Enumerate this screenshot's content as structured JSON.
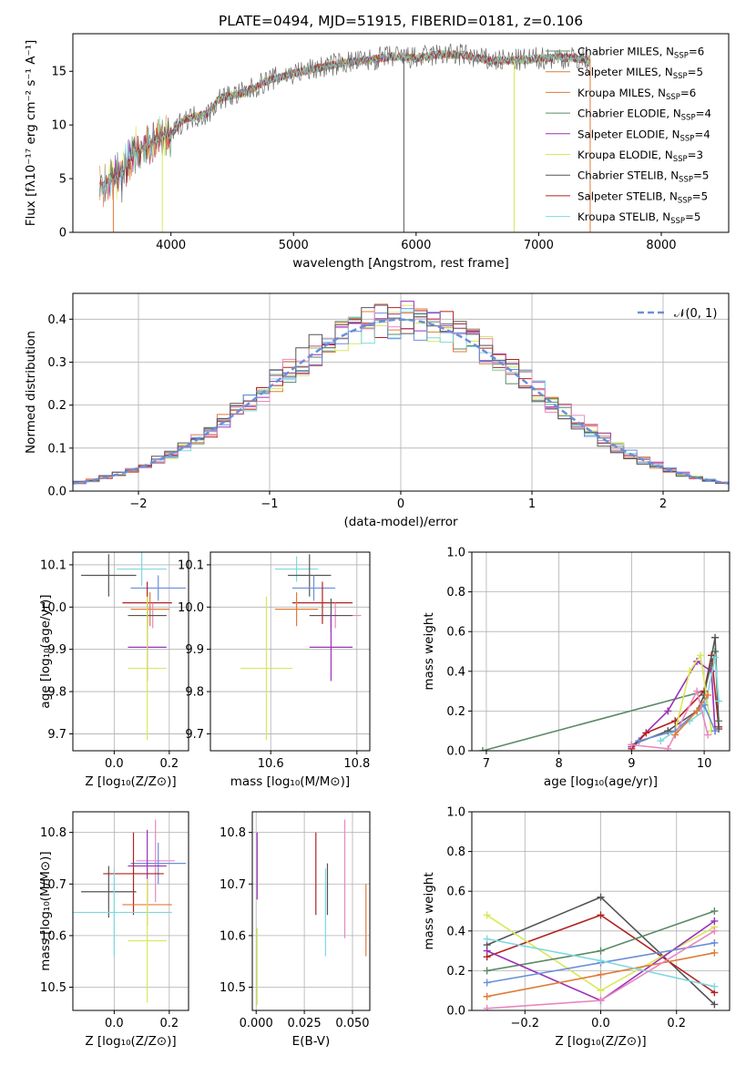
{
  "colors": {
    "chabrier_miles": "#5b8a66",
    "salpeter_miles": "#e07b39",
    "kroupa_miles": "#e07b39",
    "chabrier_elodie": "#5b8a66",
    "salpeter_elodie": "#9b30b8",
    "kroupa_elodie": "#d8e85a",
    "chabrier_stelib": "#555555",
    "salpeter_stelib": "#b22222",
    "kroupa_stelib": "#7fd8e0",
    "blue": "#6a8fd8",
    "pink": "#e888c0"
  },
  "chart_data": [
    {
      "type": "line",
      "title": "PLATE=0494, MJD=51915, FIBERID=0181, z=0.106",
      "xlabel": "wavelength [Angstrom, rest frame]",
      "ylabel": "Flux [fλ10⁻¹⁷ erg cm⁻² s⁻¹ A⁻¹]",
      "xlim": [
        3200,
        8550
      ],
      "ylim": [
        0,
        18.5
      ],
      "xticks": [
        "4000",
        "5000",
        "6000",
        "7000",
        "8000"
      ],
      "yticks": [
        "0",
        "5",
        "10",
        "15"
      ],
      "legend_position": "right",
      "legend": [
        {
          "label": "Chabrier MILES, N",
          "sub": "SSP",
          "tail": "=6",
          "color_key": "chabrier_miles"
        },
        {
          "label": "Salpeter MILES, N",
          "sub": "SSP",
          "tail": "=5",
          "color_key": "salpeter_miles"
        },
        {
          "label": "Kroupa MILES, N",
          "sub": "SSP",
          "tail": "=6",
          "color_key": "kroupa_miles"
        },
        {
          "label": "Chabrier ELODIE, N",
          "sub": "SSP",
          "tail": "=4",
          "color_key": "chabrier_elodie"
        },
        {
          "label": "Salpeter ELODIE, N",
          "sub": "SSP",
          "tail": "=4",
          "color_key": "salpeter_elodie"
        },
        {
          "label": "Kroupa ELODIE, N",
          "sub": "SSP",
          "tail": "=3",
          "color_key": "kroupa_elodie"
        },
        {
          "label": "Chabrier STELIB, N",
          "sub": "SSP",
          "tail": "=5",
          "color_key": "chabrier_stelib"
        },
        {
          "label": "Salpeter STELIB, N",
          "sub": "SSP",
          "tail": "=5",
          "color_key": "salpeter_stelib"
        },
        {
          "label": "Kroupa STELIB, N",
          "sub": "SSP",
          "tail": "=5",
          "color_key": "kroupa_stelib"
        }
      ],
      "continuum": [
        [
          3420,
          4.2
        ],
        [
          3600,
          5.5
        ],
        [
          3700,
          7.5
        ],
        [
          3800,
          8.0
        ],
        [
          3900,
          8.8
        ],
        [
          4000,
          9.0
        ],
        [
          4100,
          10.5
        ],
        [
          4200,
          10.8
        ],
        [
          4300,
          11.0
        ],
        [
          4400,
          12.5
        ],
        [
          4600,
          13.0
        ],
        [
          4800,
          14.2
        ],
        [
          5000,
          14.8
        ],
        [
          5200,
          15.3
        ],
        [
          5400,
          15.8
        ],
        [
          5600,
          16.0
        ],
        [
          5800,
          16.4
        ],
        [
          6000,
          16.2
        ],
        [
          6200,
          16.6
        ],
        [
          6400,
          16.5
        ],
        [
          6600,
          16.0
        ],
        [
          6800,
          16.0
        ],
        [
          7000,
          16.2
        ],
        [
          7200,
          16.3
        ],
        [
          7400,
          16.1
        ]
      ],
      "spike_range": [
        3420,
        7420
      ]
    },
    {
      "type": "line",
      "xlabel": "(data-model)/error",
      "ylabel": "Normed distribution",
      "xlim": [
        -2.5,
        2.5
      ],
      "ylim": [
        0,
        0.46
      ],
      "xticks": [
        "−2",
        "−1",
        "0",
        "1",
        "2"
      ],
      "yticks": [
        "0.0",
        "0.1",
        "0.2",
        "0.3",
        "0.4"
      ],
      "legend": "𝒩(0, 1)",
      "bin_width": 0.1,
      "series_color_keys": [
        "chabrier_miles",
        "salpeter_miles",
        "kroupa_elodie",
        "salpeter_elodie",
        "salpeter_stelib",
        "kroupa_stelib",
        "blue",
        "pink",
        "chabrier_stelib"
      ]
    },
    {
      "type": "scatter",
      "xlabel": "Z [log₁₀(Z/Z⊙)]",
      "ylabel": "age  [log₁₀(age/yr)]",
      "xlim": [
        -0.15,
        0.27
      ],
      "ylim": [
        9.66,
        10.13
      ],
      "xticks": [
        "0.0",
        "0.2"
      ],
      "yticks": [
        "9.7",
        "9.8",
        "9.9",
        "10.0",
        "10.1"
      ],
      "points": [
        {
          "x": 0.1,
          "y": 10.09,
          "xerr": 0.09,
          "yerr": 0.04,
          "color_key": "kroupa_stelib"
        },
        {
          "x": -0.02,
          "y": 10.075,
          "xerr": 0.1,
          "yerr": 0.05,
          "color_key": "chabrier_stelib"
        },
        {
          "x": 0.16,
          "y": 10.045,
          "xerr": 0.1,
          "yerr": 0.03,
          "color_key": "blue"
        },
        {
          "x": 0.12,
          "y": 10.01,
          "xerr": 0.09,
          "yerr": 0.05,
          "color_key": "salpeter_stelib"
        },
        {
          "x": 0.13,
          "y": 9.995,
          "xerr": 0.07,
          "yerr": 0.04,
          "color_key": "salpeter_miles"
        },
        {
          "x": 0.14,
          "y": 9.98,
          "xerr": 0.05,
          "yerr": 0.03,
          "color_key": "pink"
        },
        {
          "x": 0.12,
          "y": 9.98,
          "xerr": 0.07,
          "yerr": 0.03,
          "color_key": "chabrier_stelib"
        },
        {
          "x": 0.12,
          "y": 9.905,
          "xerr": 0.07,
          "yerr": 0.08,
          "color_key": "salpeter_elodie"
        },
        {
          "x": 0.12,
          "y": 9.855,
          "xerr": 0.07,
          "yerr": 0.17,
          "color_key": "kroupa_elodie"
        }
      ]
    },
    {
      "type": "scatter",
      "xlabel": "mass [log₁₀(M/M⊙)]",
      "ylabel": "",
      "xlim": [
        10.46,
        10.83
      ],
      "ylim": [
        9.66,
        10.13
      ],
      "xticks": [
        "10.6",
        "10.8"
      ],
      "yticks": [
        "9.7",
        "9.8",
        "9.9",
        "10.0",
        "10.1"
      ],
      "points": [
        {
          "x": 10.66,
          "y": 10.09,
          "xerr": 0.05,
          "yerr": 0.03,
          "color_key": "kroupa_stelib"
        },
        {
          "x": 10.69,
          "y": 10.075,
          "xerr": 0.05,
          "yerr": 0.05,
          "color_key": "chabrier_stelib"
        },
        {
          "x": 10.7,
          "y": 10.045,
          "xerr": 0.05,
          "yerr": 0.03,
          "color_key": "blue"
        },
        {
          "x": 10.72,
          "y": 10.01,
          "xerr": 0.07,
          "yerr": 0.05,
          "color_key": "salpeter_stelib"
        },
        {
          "x": 10.66,
          "y": 9.995,
          "xerr": 0.05,
          "yerr": 0.04,
          "color_key": "salpeter_miles"
        },
        {
          "x": 10.75,
          "y": 9.98,
          "xerr": 0.06,
          "yerr": 0.03,
          "color_key": "pink"
        },
        {
          "x": 10.74,
          "y": 9.98,
          "xerr": 0.05,
          "yerr": 0.04,
          "color_key": "chabrier_stelib"
        },
        {
          "x": 10.74,
          "y": 9.905,
          "xerr": 0.05,
          "yerr": 0.08,
          "color_key": "salpeter_elodie"
        },
        {
          "x": 10.59,
          "y": 9.855,
          "xerr": 0.06,
          "yerr": 0.17,
          "color_key": "kroupa_elodie"
        }
      ]
    },
    {
      "type": "line",
      "xlabel": "age  [log₁₀(age/yr)]",
      "ylabel": "mass weight",
      "xlim": [
        6.8,
        10.35
      ],
      "ylim": [
        0,
        1
      ],
      "xticks": [
        "7",
        "8",
        "9",
        "10"
      ],
      "yticks": [
        "0.0",
        "0.2",
        "0.4",
        "0.6",
        "0.8",
        "1.0"
      ],
      "series": [
        {
          "color_key": "chabrier_miles",
          "x": [
            6.95,
            10.0,
            10.15,
            10.2
          ],
          "y": [
            0.0,
            0.3,
            0.5,
            0.15
          ]
        },
        {
          "color_key": "salpeter_elodie",
          "x": [
            9.0,
            9.5,
            9.9,
            10.1,
            10.15
          ],
          "y": [
            0.02,
            0.2,
            0.45,
            0.4,
            0.1
          ]
        },
        {
          "color_key": "salpeter_stelib",
          "x": [
            9.0,
            9.2,
            9.6,
            10.0,
            10.1,
            10.2
          ],
          "y": [
            0.01,
            0.09,
            0.15,
            0.3,
            0.48,
            0.12
          ]
        },
        {
          "color_key": "chabrier_stelib",
          "x": [
            9.0,
            9.5,
            9.9,
            10.0,
            10.15,
            10.2
          ],
          "y": [
            0.03,
            0.1,
            0.2,
            0.28,
            0.57,
            0.11
          ]
        },
        {
          "color_key": "kroupa_elodie",
          "x": [
            9.6,
            9.8,
            9.95,
            10.1
          ],
          "y": [
            0.1,
            0.4,
            0.48,
            0.1
          ]
        },
        {
          "color_key": "kroupa_stelib",
          "x": [
            9.4,
            9.8,
            10.0,
            10.15,
            10.2
          ],
          "y": [
            0.05,
            0.15,
            0.2,
            0.47,
            0.25
          ]
        },
        {
          "color_key": "blue",
          "x": [
            9.1,
            9.6,
            10.0,
            10.15
          ],
          "y": [
            0.05,
            0.1,
            0.23,
            0.1
          ]
        },
        {
          "color_key": "pink",
          "x": [
            9.0,
            9.5,
            9.9,
            10.05
          ],
          "y": [
            0.03,
            0.01,
            0.3,
            0.08
          ]
        },
        {
          "color_key": "salpeter_miles",
          "x": [
            9.6,
            9.9,
            10.05
          ],
          "y": [
            0.08,
            0.2,
            0.28
          ]
        }
      ]
    },
    {
      "type": "scatter",
      "xlabel": "Z [log₁₀(Z/Z⊙)]",
      "ylabel": "mass [log₁₀(M/M⊙)]",
      "xlim": [
        -0.15,
        0.27
      ],
      "ylim": [
        10.455,
        10.84
      ],
      "xticks": [
        "0.0",
        "0.2"
      ],
      "yticks": [
        "10.5",
        "10.6",
        "10.7",
        "10.8"
      ],
      "points": [
        {
          "x": 0.15,
          "y": 10.745,
          "xerr": 0.07,
          "yerr": 0.08,
          "color_key": "pink"
        },
        {
          "x": 0.16,
          "y": 10.74,
          "xerr": 0.1,
          "yerr": 0.04,
          "color_key": "blue"
        },
        {
          "x": 0.12,
          "y": 10.735,
          "xerr": 0.07,
          "yerr": 0.07,
          "color_key": "salpeter_elodie"
        },
        {
          "x": 0.07,
          "y": 10.72,
          "xerr": 0.11,
          "yerr": 0.08,
          "color_key": "salpeter_stelib"
        },
        {
          "x": -0.02,
          "y": 10.685,
          "xerr": 0.1,
          "yerr": 0.05,
          "color_key": "chabrier_stelib"
        },
        {
          "x": 0.12,
          "y": 10.66,
          "xerr": 0.09,
          "yerr": 0.04,
          "color_key": "salpeter_miles"
        },
        {
          "x": 0.0,
          "y": 10.645,
          "xerr": 0.21,
          "yerr": 0.085,
          "color_key": "kroupa_stelib"
        },
        {
          "x": 0.12,
          "y": 10.59,
          "xerr": 0.07,
          "yerr": 0.12,
          "color_key": "kroupa_elodie"
        }
      ]
    },
    {
      "type": "scatter",
      "xlabel": "E(B-V)",
      "ylabel": "",
      "xlim": [
        -0.002,
        0.059
      ],
      "ylim": [
        10.455,
        10.84
      ],
      "xticks": [
        "0.000",
        "0.025",
        "0.050"
      ],
      "yticks": [
        "10.5",
        "10.6",
        "10.7",
        "10.8"
      ],
      "points": [
        {
          "x": 0.0005,
          "y": 10.735,
          "yerr": 0.065,
          "color_key": "salpeter_elodie"
        },
        {
          "x": 0.0005,
          "y": 10.54,
          "yerr": 0.075,
          "color_key": "kroupa_elodie"
        },
        {
          "x": 0.031,
          "y": 10.72,
          "yerr": 0.08,
          "color_key": "salpeter_stelib"
        },
        {
          "x": 0.037,
          "y": 10.69,
          "yerr": 0.05,
          "color_key": "chabrier_stelib"
        },
        {
          "x": 0.036,
          "y": 10.645,
          "yerr": 0.085,
          "color_key": "kroupa_stelib"
        },
        {
          "x": 0.046,
          "y": 10.71,
          "yerr": 0.115,
          "color_key": "pink"
        },
        {
          "x": 0.057,
          "y": 10.63,
          "yerr": 0.07,
          "color_key": "salpeter_miles"
        }
      ]
    },
    {
      "type": "line",
      "xlabel": "Z [log₁₀(Z/Z⊙)]",
      "ylabel": "mass weight",
      "xlim": [
        -0.34,
        0.34
      ],
      "ylim": [
        0,
        1
      ],
      "xticks": [
        "−0.2",
        "0.0",
        "0.2"
      ],
      "yticks": [
        "0.0",
        "0.2",
        "0.4",
        "0.6",
        "0.8",
        "1.0"
      ],
      "series": [
        {
          "color_key": "chabrier_stelib",
          "x": [
            -0.3,
            0.0,
            0.3
          ],
          "y": [
            0.33,
            0.57,
            0.03
          ]
        },
        {
          "color_key": "salpeter_stelib",
          "x": [
            -0.3,
            0.0,
            0.3
          ],
          "y": [
            0.27,
            0.48,
            0.09
          ]
        },
        {
          "color_key": "kroupa_elodie",
          "x": [
            -0.3,
            0.0,
            0.3
          ],
          "y": [
            0.48,
            0.1,
            0.42
          ]
        },
        {
          "color_key": "chabrier_miles",
          "x": [
            -0.3,
            0.0,
            0.3
          ],
          "y": [
            0.2,
            0.3,
            0.5
          ]
        },
        {
          "color_key": "salpeter_elodie",
          "x": [
            -0.3,
            0.0,
            0.3
          ],
          "y": [
            0.3,
            0.05,
            0.45
          ]
        },
        {
          "color_key": "blue",
          "x": [
            -0.3,
            0.0,
            0.3
          ],
          "y": [
            0.14,
            0.24,
            0.34
          ]
        },
        {
          "color_key": "salpeter_miles",
          "x": [
            -0.3,
            0.0,
            0.3
          ],
          "y": [
            0.07,
            0.18,
            0.29
          ]
        },
        {
          "color_key": "kroupa_stelib",
          "x": [
            -0.3,
            0.0,
            0.3
          ],
          "y": [
            0.36,
            0.25,
            0.12
          ]
        },
        {
          "color_key": "pink",
          "x": [
            -0.3,
            0.0,
            0.3
          ],
          "y": [
            0.01,
            0.05,
            0.4
          ]
        }
      ]
    }
  ]
}
